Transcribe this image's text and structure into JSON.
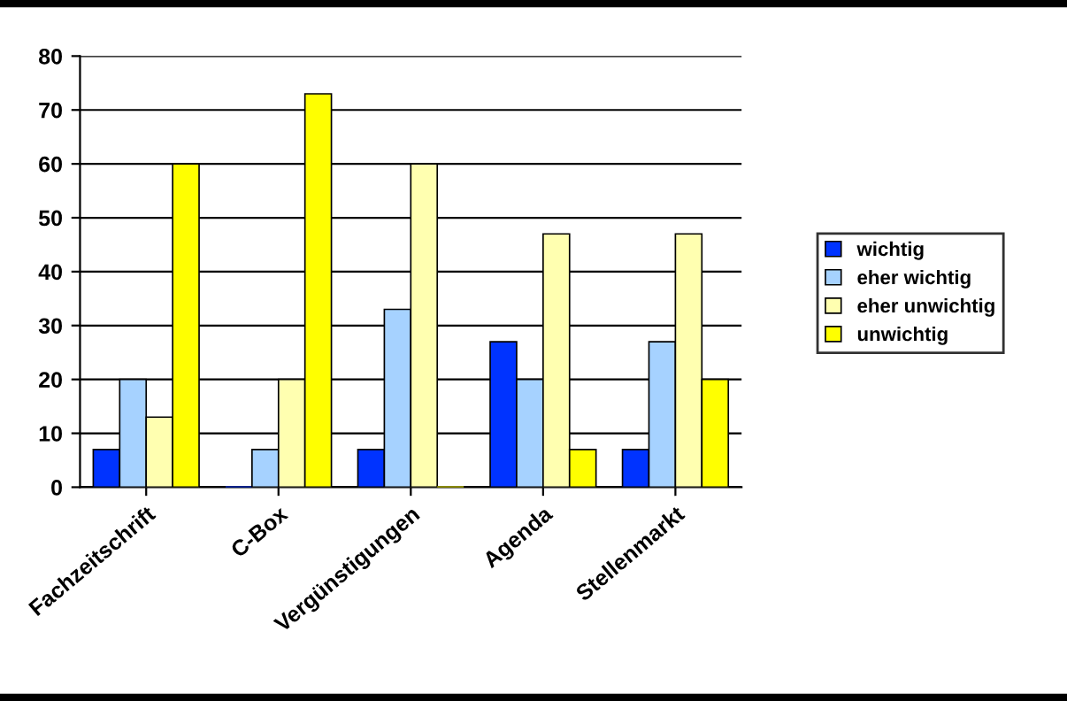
{
  "chart_data": {
    "type": "bar",
    "categories": [
      "Fachzeitschrift",
      "C-Box",
      "Vergünstigungen",
      "Agenda",
      "Stellenmarkt"
    ],
    "series": [
      {
        "name": "wichtig",
        "color": "#0033ff",
        "values": [
          7,
          0,
          7,
          27,
          7
        ]
      },
      {
        "name": "eher wichtig",
        "color": "#a6d2ff",
        "values": [
          20,
          7,
          33,
          20,
          27
        ]
      },
      {
        "name": "eher unwichtig",
        "color": "#ffffb0",
        "values": [
          13,
          20,
          60,
          47,
          47
        ]
      },
      {
        "name": "unwichtig",
        "color": "#ffff00",
        "values": [
          60,
          73,
          0,
          7,
          20
        ]
      }
    ],
    "ylim": [
      0,
      80
    ],
    "yticks": [
      0,
      10,
      20,
      30,
      40,
      50,
      60,
      70,
      80
    ],
    "grid": "y",
    "legend": "right"
  }
}
